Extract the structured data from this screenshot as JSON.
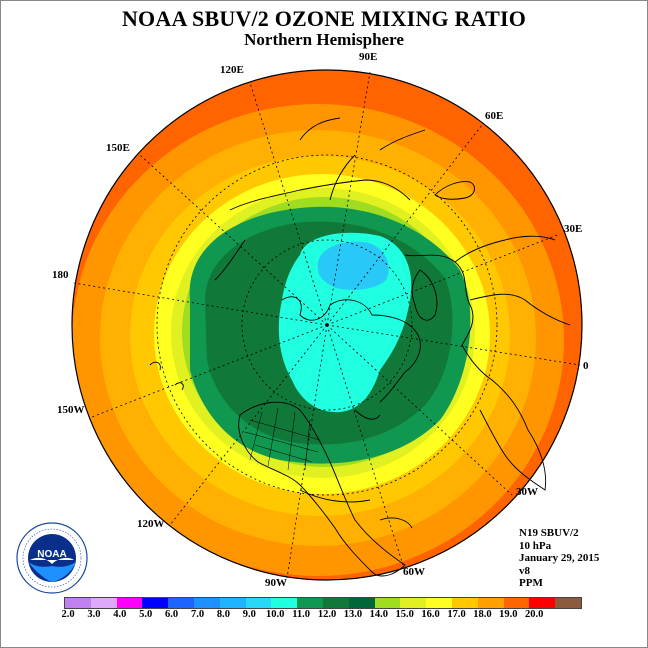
{
  "title": "NOAA SBUV/2 OZONE MIXING RATIO",
  "subtitle": "Northern Hemisphere",
  "longitude_labels": [
    "90E",
    "60E",
    "30E",
    "0",
    "30W",
    "60W",
    "90W",
    "120W",
    "150W",
    "180",
    "150E",
    "120E"
  ],
  "info": {
    "instrument": "N19 SBUV/2",
    "level": "10 hPa",
    "date": "January 29, 2015",
    "version": "v8",
    "units": "PPM"
  },
  "colorbar": {
    "ticks": [
      "2.0",
      "3.0",
      "4.0",
      "5.0",
      "6.0",
      "7.0",
      "8.0",
      "9.0",
      "10.0",
      "11.0",
      "12.0",
      "13.0",
      "14.0",
      "15.0",
      "16.0",
      "17.0",
      "18.0",
      "19.0",
      "20.0"
    ],
    "colors": [
      "#c080f0",
      "#e0a8f8",
      "#ff00ff",
      "#0000ff",
      "#1e64ff",
      "#1e90ff",
      "#20b4ff",
      "#28d8f8",
      "#20ffe0",
      "#109850",
      "#107838",
      "#006838",
      "#a0dc20",
      "#e0f020",
      "#ffff20",
      "#ffc800",
      "#ffa000",
      "#ff6400",
      "#ff0000",
      "#8c5a3c"
    ]
  },
  "logo_text": "NOAA"
}
